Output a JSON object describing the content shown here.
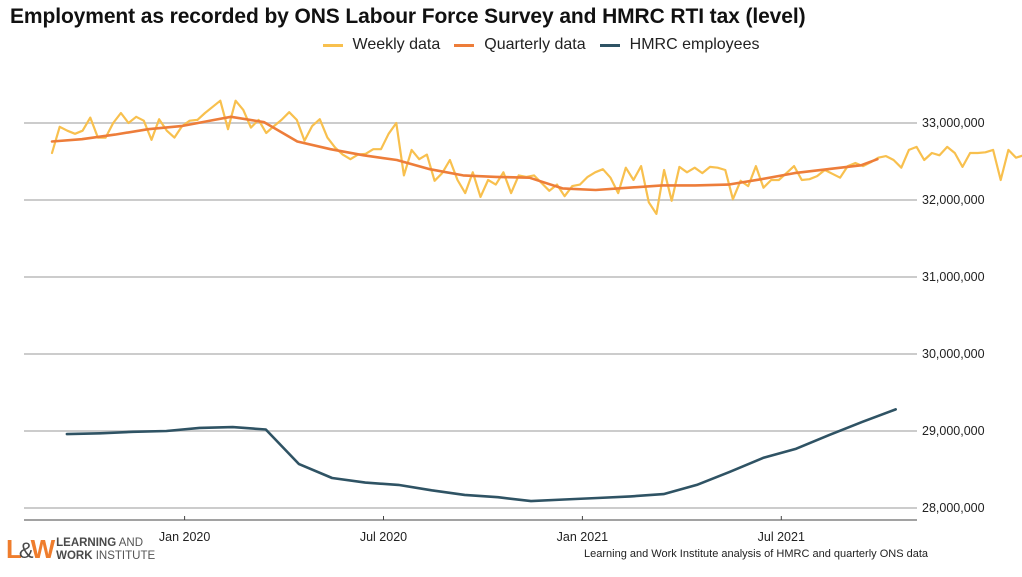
{
  "title": "Employment as recorded by ONS Labour Force Survey and HMRC RTI tax (level)",
  "legend": [
    {
      "label": "Weekly data",
      "color": "#f8c04e"
    },
    {
      "label": "Quarterly data",
      "color": "#ed7d3a"
    },
    {
      "label": "HMRC employees",
      "color": "#2f5364"
    }
  ],
  "logo": {
    "mark": "L&W",
    "line1_bold": "LEARNING",
    "line1_rest": " AND",
    "line2_bold": "WORK",
    "line2_rest": " INSTITUTE"
  },
  "source": "Learning and Work Institute analysis of HMRC and quarterly ONS data",
  "chart_data": {
    "type": "line",
    "title": "Employment as recorded by ONS Labour Force Survey and HMRC RTI tax (level)",
    "xlabel": "",
    "ylabel": "",
    "x_ticks": [
      {
        "label": "Jan 2020",
        "month_index": 4
      },
      {
        "label": "Jul 2020",
        "month_index": 10
      },
      {
        "label": "Jan 2021",
        "month_index": 16
      },
      {
        "label": "Jul 2021",
        "month_index": 22
      }
    ],
    "x_range_months": [
      0,
      26.4
    ],
    "y_ticks": [
      28000000,
      29000000,
      30000000,
      31000000,
      32000000,
      33000000
    ],
    "y_tick_labels": [
      "28,000,000",
      "29,000,000",
      "30,000,000",
      "31,000,000",
      "32,000,000",
      "33,000,000"
    ],
    "ylim": [
      27950000,
      33500000
    ],
    "y_axis_position": "right",
    "grid": true,
    "legend_position": "top",
    "series": [
      {
        "name": "Weekly data",
        "color": "#f8c04e",
        "x_start_month": 0.1,
        "x_step_months": 0.2308,
        "values": [
          32610000,
          32950000,
          32900000,
          32860000,
          32900000,
          33070000,
          32810000,
          32810000,
          33000000,
          33130000,
          33000000,
          33080000,
          33030000,
          32780000,
          33050000,
          32900000,
          32810000,
          32960000,
          33030000,
          33040000,
          33130000,
          33210000,
          33290000,
          32920000,
          33290000,
          33170000,
          32940000,
          33040000,
          32870000,
          32960000,
          33040000,
          33140000,
          33040000,
          32770000,
          32960000,
          33050000,
          32810000,
          32680000,
          32590000,
          32530000,
          32590000,
          32600000,
          32660000,
          32660000,
          32860000,
          33000000,
          32320000,
          32650000,
          32530000,
          32590000,
          32250000,
          32350000,
          32520000,
          32260000,
          32090000,
          32360000,
          32040000,
          32260000,
          32200000,
          32360000,
          32090000,
          32320000,
          32300000,
          32320000,
          32220000,
          32120000,
          32200000,
          32050000,
          32180000,
          32200000,
          32300000,
          32360000,
          32400000,
          32290000,
          32090000,
          32420000,
          32260000,
          32440000,
          31970000,
          31820000,
          32390000,
          31990000,
          32430000,
          32360000,
          32420000,
          32350000,
          32430000,
          32420000,
          32390000,
          32010000,
          32250000,
          32180000,
          32440000,
          32160000,
          32260000,
          32260000,
          32350000,
          32440000,
          32260000,
          32270000,
          32310000,
          32390000,
          32340000,
          32290000,
          32440000,
          32480000,
          32440000,
          32490000,
          32550000,
          32570000,
          32520000,
          32420000,
          32650000,
          32690000,
          32520000,
          32610000,
          32580000,
          32690000,
          32610000,
          32430000,
          32610000,
          32610000,
          32620000,
          32650000,
          32260000,
          32650000,
          32550000,
          32580000
        ]
      },
      {
        "name": "Quarterly data",
        "color": "#ed7d3a",
        "points": [
          {
            "month": 0.1,
            "value": 32760000
          },
          {
            "month": 1.0,
            "value": 32790000
          },
          {
            "month": 2.0,
            "value": 32850000
          },
          {
            "month": 3.0,
            "value": 32920000
          },
          {
            "month": 4.0,
            "value": 32960000
          },
          {
            "month": 5.0,
            "value": 33040000
          },
          {
            "month": 5.5,
            "value": 33080000
          },
          {
            "month": 6.5,
            "value": 33010000
          },
          {
            "month": 7.5,
            "value": 32760000
          },
          {
            "month": 8.5,
            "value": 32660000
          },
          {
            "month": 9.5,
            "value": 32580000
          },
          {
            "month": 10.5,
            "value": 32520000
          },
          {
            "month": 11.5,
            "value": 32400000
          },
          {
            "month": 12.5,
            "value": 32320000
          },
          {
            "month": 13.5,
            "value": 32300000
          },
          {
            "month": 14.5,
            "value": 32290000
          },
          {
            "month": 15.5,
            "value": 32150000
          },
          {
            "month": 16.5,
            "value": 32130000
          },
          {
            "month": 17.5,
            "value": 32160000
          },
          {
            "month": 18.5,
            "value": 32190000
          },
          {
            "month": 19.5,
            "value": 32190000
          },
          {
            "month": 20.5,
            "value": 32200000
          },
          {
            "month": 21.5,
            "value": 32270000
          },
          {
            "month": 22.5,
            "value": 32350000
          },
          {
            "month": 23.5,
            "value": 32400000
          },
          {
            "month": 24.5,
            "value": 32450000
          },
          {
            "month": 25.0,
            "value": 32530000
          }
        ]
      },
      {
        "name": "HMRC employees",
        "color": "#2f5364",
        "x_start_month": 0.55,
        "x_step_months": 1.0,
        "values": [
          28960000,
          28970000,
          28990000,
          29000000,
          29040000,
          29050000,
          29020000,
          28570000,
          28390000,
          28330000,
          28300000,
          28230000,
          28170000,
          28140000,
          28090000,
          28110000,
          28130000,
          28150000,
          28180000,
          28300000,
          28470000,
          28650000,
          28770000,
          28950000,
          29120000,
          29280000
        ]
      }
    ]
  }
}
